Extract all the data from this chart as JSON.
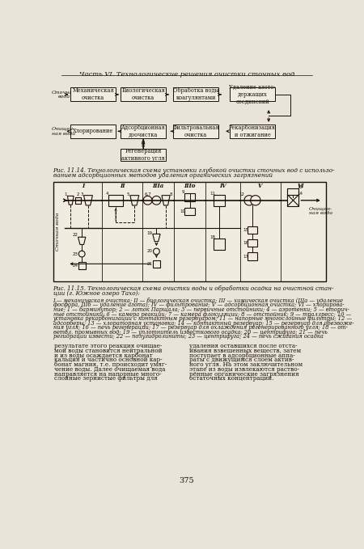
{
  "page_header": "Часть VI. Технологические решения очистки сточных вод",
  "fig1_caption_line1": "Рис. 11.14. Технологическая схема установки глубокой очистки сточных вод с использо-",
  "fig1_caption_line2": "ванием адсорбционных методов удаления органических загрязнений",
  "fig2_caption_line1": "Рис. 11.15. Технологическая схема очистки воды и обработки осадка на очистной стан-",
  "fig2_caption_line2": "ции (г. Южное озеро Тахо):",
  "fig2_legend_lines": [
    "I — механическая очистка; II — биологическая очистка; III — химическая очистка (IIIа — удаление",
    "фосфора, IIIб — удаление азота); IV — фильтрование; V — адсорбционная очистка; VI — хлорирова-",
    "ние; 1 — барминутор; 2 — лоток Парщала; 3 — первичные отстойники; 4 — аэротенки; 5 — вторич-",
    "ные отстойники; 6 — камера реакции; 7 — камера флокуляции; 8 — отстойник; 9 — траллресс; 10 —",
    "установка рекарбонизации с контактным резервуаром; 11 — напорные многослойные фильтры; 12 —",
    "адсорберы; 13 — хлораторная установка; 14 — контактный резервуар; 15 — резервуар для обезвоже-",
    "ния угля; 16 — печь регенерации; 17 — резервуар для охлаждения регенерированного угля; 18 — от-",
    "ветвл. промывных вод; 19 — уплотнитель известкового осадка; 20 — центрифуга; 21 — печь",
    "регидрации извести; 22 — полугидролиниты; 23 — центрифуга; 24 — печь сжигания осадка"
  ],
  "body_left_lines": [
    "результате этого реакция очищае-",
    "мой воды становится нейтральной",
    "и из воды осаждается карбонат",
    "кальция и частично основной кар-",
    "бонат магния, т.е. происходит умяг-",
    "чение воды. Далее очищаемая вода",
    "направляется на напорные много-",
    "слойные зернистые фильтры для"
  ],
  "body_right_lines": [
    "удаления оставшихся после отста-",
    "ивания взвешенных веществ, затем",
    "поступает в адсорбционные аппа-",
    "раты с движущимся слоем актив-",
    "ного угля. На этом заключительном",
    "этапе из воды извлекаются раство-",
    "рённые органические загрязнения",
    "остаточных концентраций."
  ],
  "page_number": "375",
  "bg_color": "#e8e4da"
}
